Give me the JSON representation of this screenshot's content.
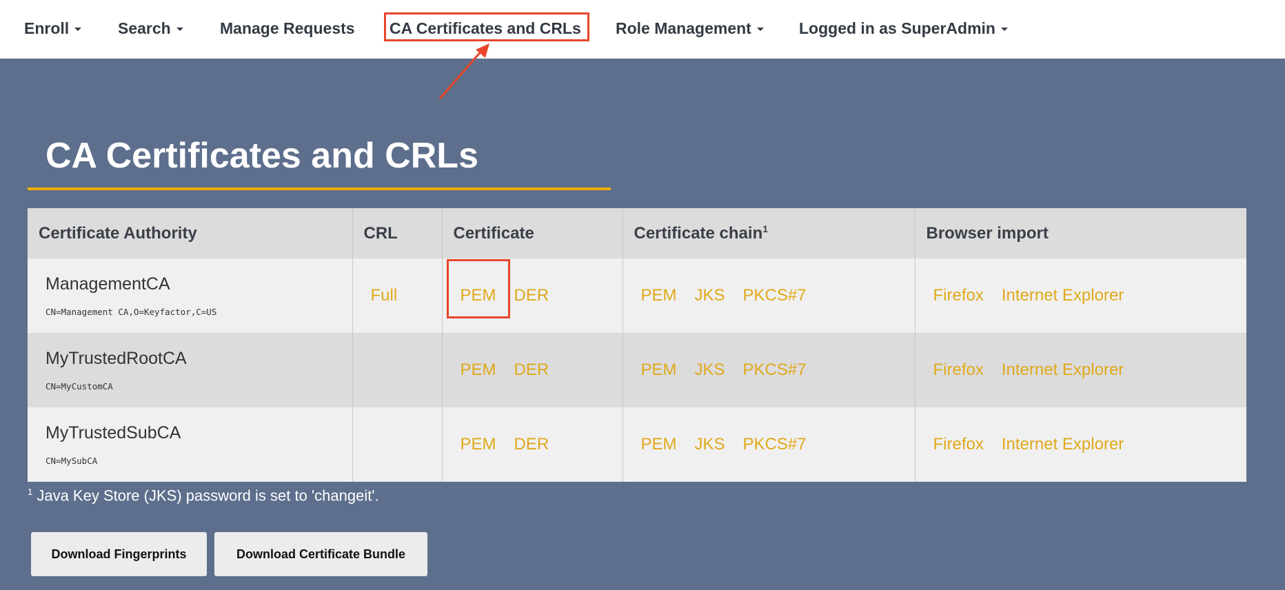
{
  "nav": {
    "items": [
      {
        "label": "Enroll",
        "dropdown": true
      },
      {
        "label": "Search",
        "dropdown": true
      },
      {
        "label": "Manage Requests",
        "dropdown": false
      },
      {
        "label": "CA Certificates and CRLs",
        "dropdown": false
      },
      {
        "label": "Role Management",
        "dropdown": true
      },
      {
        "label": "Logged in as SuperAdmin",
        "dropdown": true
      }
    ]
  },
  "page": {
    "title": "CA Certificates and CRLs"
  },
  "table": {
    "headers": [
      "Certificate Authority",
      "CRL",
      "Certificate",
      "Certificate chain",
      "Browser import"
    ],
    "header_sup": "1",
    "rows": [
      {
        "name": "ManagementCA",
        "dn": "CN=Management CA,O=Keyfactor,C=US",
        "crl": "Full",
        "cert": [
          "PEM",
          "DER"
        ],
        "chain": [
          "PEM",
          "JKS",
          "PKCS#7"
        ],
        "browser": [
          "Firefox",
          "Internet Explorer"
        ]
      },
      {
        "name": "MyTrustedRootCA",
        "dn": "CN=MyCustomCA",
        "crl": "",
        "cert": [
          "PEM",
          "DER"
        ],
        "chain": [
          "PEM",
          "JKS",
          "PKCS#7"
        ],
        "browser": [
          "Firefox",
          "Internet Explorer"
        ]
      },
      {
        "name": "MyTrustedSubCA",
        "dn": "CN=MySubCA",
        "crl": "",
        "cert": [
          "PEM",
          "DER"
        ],
        "chain": [
          "PEM",
          "JKS",
          "PKCS#7"
        ],
        "browser": [
          "Firefox",
          "Internet Explorer"
        ]
      }
    ]
  },
  "footnote": {
    "mark": "1",
    "text": " Java Key Store (JKS) password is set to 'changeit'."
  },
  "buttons": {
    "fingerprints": "Download Fingerprints",
    "bundle": "Download Certificate Bundle"
  },
  "colors": {
    "background": "#5d6f8c",
    "link": "#e0a91a",
    "accent_underline": "#f0ad00",
    "annotation": "#e8452a"
  }
}
